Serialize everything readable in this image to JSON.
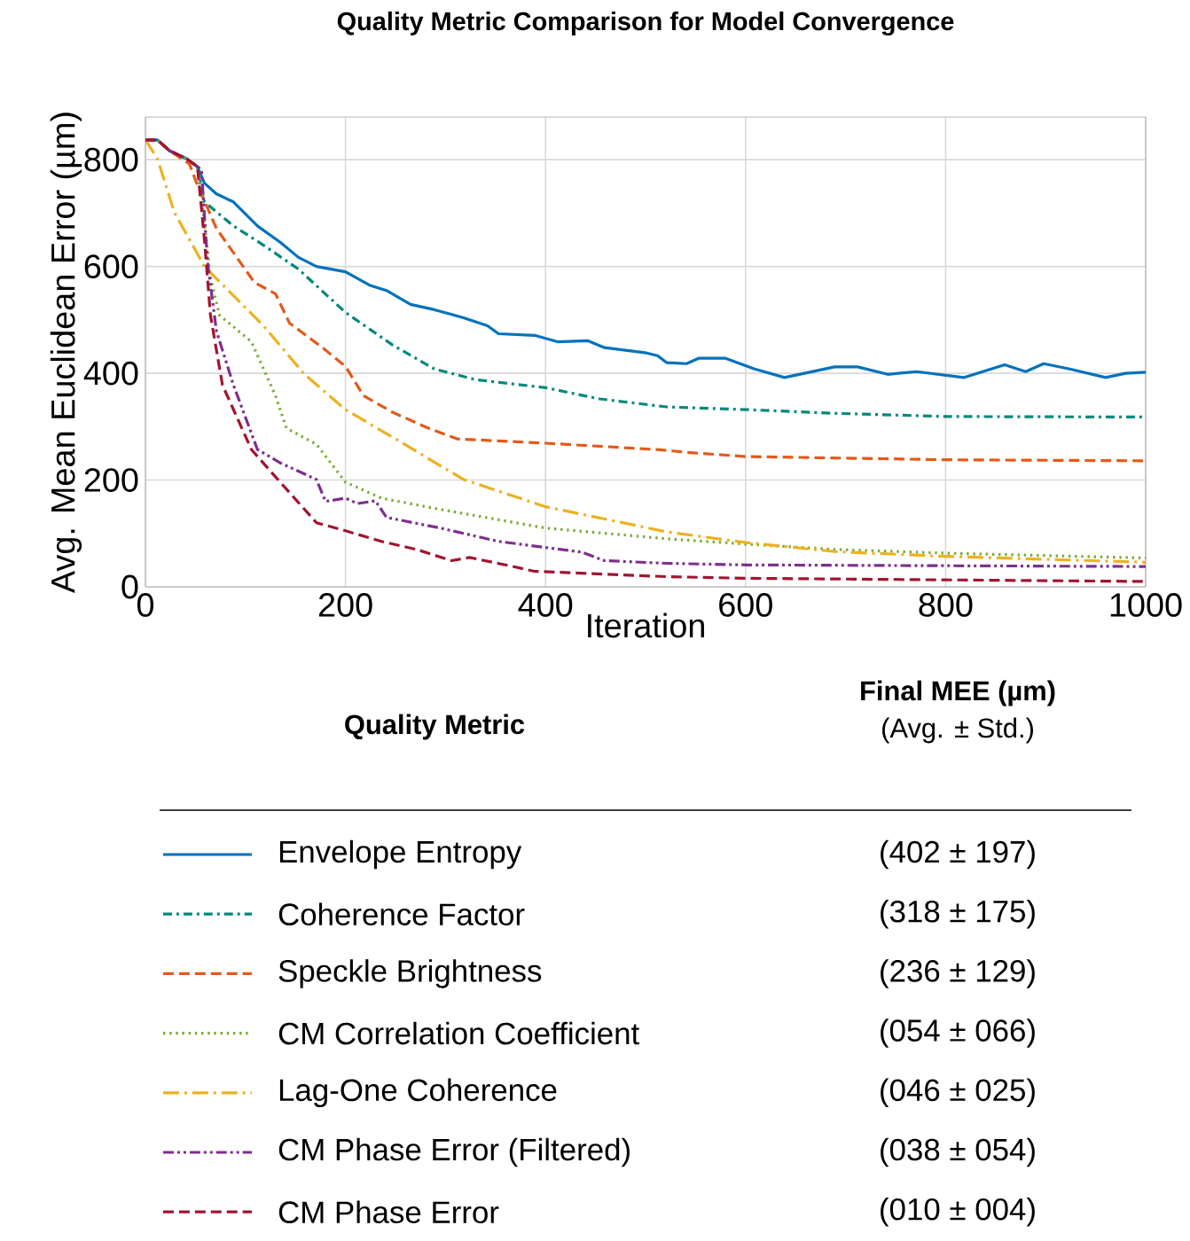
{
  "chart_data": {
    "type": "line",
    "title": "Quality Metric Comparison for Model Convergence",
    "xlabel": "Iteration",
    "ylabel": "Avg. Mean Euclidean Error (µm)",
    "xlim": [
      0,
      1000
    ],
    "ylim": [
      0,
      880
    ],
    "xticks": [
      0,
      200,
      400,
      600,
      800,
      1000
    ],
    "yticks": [
      0,
      200,
      400,
      600,
      800
    ],
    "grid": true,
    "legend": "bottom",
    "legend_title": "Quality Metric",
    "annotations": [
      "Final MEE (µm)",
      "(Avg. ± Std.)",
      "(402 ± 197)",
      "(318 ± 175)",
      "(236 ± 129)",
      "(054 ± 066)",
      "(046 ± 025)",
      "(038 ± 054)",
      "(010 ± 004)"
    ],
    "series": [
      {
        "name": "Envelope Entropy",
        "color": "#0072bd",
        "line_style": "solid",
        "x": [
          0,
          12,
          24,
          41,
          52,
          59,
          71,
          88,
          112,
          135,
          153,
          171,
          200,
          224,
          241,
          265,
          289,
          318,
          342,
          353,
          389,
          412,
          442,
          459,
          501,
          512,
          521,
          541,
          553,
          580,
          609,
          639,
          689,
          712,
          742,
          771,
          818,
          859,
          880,
          898,
          924,
          960,
          980,
          1000
        ],
        "values": [
          837,
          837,
          817,
          802,
          787,
          756,
          736,
          721,
          676,
          645,
          617,
          600,
          590,
          565,
          555,
          529,
          519,
          504,
          489,
          474,
          471,
          459,
          461,
          448,
          438,
          433,
          420,
          418,
          428,
          428,
          408,
          392,
          412,
          412,
          398,
          403,
          392,
          416,
          403,
          418,
          408,
          392,
          400,
          402
        ]
      },
      {
        "name": "Coherence Factor",
        "color": "#00897b",
        "line_style": "dashdot",
        "x": [
          0,
          12,
          24,
          41,
          52,
          59,
          88,
          118,
          153,
          200,
          247,
          289,
          330,
          400,
          454,
          521,
          600,
          689,
          800,
          1000
        ],
        "values": [
          837,
          837,
          817,
          802,
          787,
          721,
          676,
          640,
          595,
          514,
          453,
          408,
          388,
          373,
          352,
          337,
          332,
          325,
          319,
          318
        ]
      },
      {
        "name": "Speckle Brightness",
        "color": "#e35a1a",
        "line_style": "dashed",
        "x": [
          0,
          12,
          24,
          44,
          50,
          71,
          109,
          130,
          144,
          177,
          200,
          218,
          247,
          283,
          312,
          400,
          512,
          547,
          600,
          800,
          1000
        ],
        "values": [
          837,
          837,
          817,
          792,
          762,
          671,
          570,
          549,
          494,
          448,
          413,
          358,
          327,
          297,
          277,
          269,
          257,
          251,
          244,
          238,
          236
        ]
      },
      {
        "name": "CM Correlation Coefficient",
        "color": "#77ac30",
        "line_style": "dotted",
        "x": [
          0,
          12,
          24,
          41,
          52,
          56,
          65,
          74,
          106,
          130,
          141,
          171,
          200,
          236,
          295,
          400,
          521,
          600,
          689,
          800,
          1000
        ],
        "values": [
          837,
          837,
          817,
          802,
          787,
          731,
          580,
          509,
          459,
          358,
          297,
          267,
          196,
          166,
          145,
          110,
          90,
          80,
          70,
          63,
          54
        ]
      },
      {
        "name": "Lag-One Coherence",
        "color": "#edb120",
        "line_style": "longdashdot",
        "x": [
          0,
          12,
          29,
          59,
          118,
          159,
          200,
          259,
          318,
          400,
          521,
          600,
          689,
          800,
          1000
        ],
        "values": [
          837,
          802,
          701,
          600,
          489,
          398,
          332,
          267,
          201,
          150,
          103,
          83,
          66,
          57,
          46
        ]
      },
      {
        "name": "CM Phase Error (Filtered)",
        "color": "#7e2f8e",
        "line_style": "dashdotdot",
        "x": [
          0,
          12,
          24,
          41,
          52,
          56,
          62,
          71,
          88,
          112,
          135,
          171,
          180,
          200,
          212,
          230,
          241,
          295,
          353,
          436,
          459,
          521,
          600,
          1000
        ],
        "values": [
          837,
          837,
          817,
          802,
          787,
          782,
          610,
          479,
          378,
          257,
          232,
          201,
          160,
          166,
          156,
          161,
          130,
          110,
          85,
          65,
          49,
          44,
          41,
          38
        ]
      },
      {
        "name": "CM Phase Error",
        "color": "#a2142f",
        "line_style": "dashed",
        "x": [
          0,
          12,
          24,
          41,
          52,
          59,
          65,
          77,
          106,
          130,
          171,
          200,
          236,
          271,
          306,
          324,
          365,
          389,
          521,
          600,
          1000
        ],
        "values": [
          837,
          837,
          817,
          802,
          787,
          650,
          509,
          378,
          257,
          206,
          120,
          105,
          85,
          70,
          49,
          55,
          39,
          29,
          19,
          16,
          10
        ]
      }
    ]
  }
}
